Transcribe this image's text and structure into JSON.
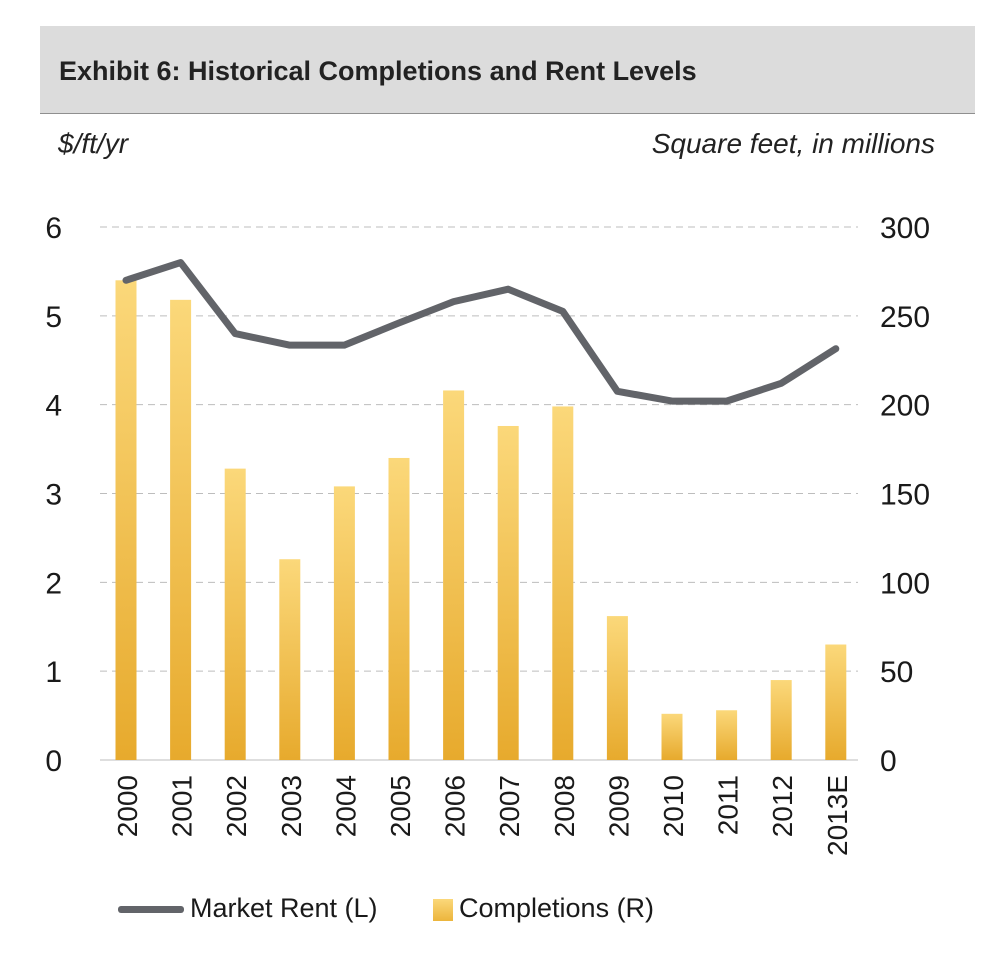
{
  "title": "Exhibit 6: Historical Completions and Rent Levels",
  "left_axis_caption": "$/ft/yr",
  "right_axis_caption": "Square feet, in millions",
  "colors": {
    "line": "#626469",
    "bar_top": "#fbd87a",
    "bar_bottom": "#e7aa2d",
    "grid": "#bdbdbd",
    "title_bg": "#dcdcdc"
  },
  "legend": [
    {
      "label": "Market Rent (L)",
      "icon": "line-swatch"
    },
    {
      "label": "Completions (R)",
      "icon": "bar-swatch"
    }
  ],
  "chart_data": {
    "type": "bar+line",
    "title": "Exhibit 6: Historical Completions and Rent Levels",
    "categories": [
      "2000",
      "2001",
      "2002",
      "2003",
      "2004",
      "2005",
      "2006",
      "2007",
      "2008",
      "2009",
      "2010",
      "2011",
      "2012",
      "2013E"
    ],
    "series": [
      {
        "name": "Completions (R)",
        "type": "bar",
        "axis": "right",
        "values": [
          270,
          259,
          164,
          113,
          154,
          170,
          208,
          188,
          199,
          81,
          26,
          28,
          45,
          65
        ]
      },
      {
        "name": "Market Rent (L)",
        "type": "line",
        "axis": "left",
        "values": [
          5.4,
          5.6,
          4.8,
          4.67,
          4.67,
          4.92,
          5.16,
          5.3,
          5.05,
          4.15,
          4.04,
          4.04,
          4.24,
          4.63
        ]
      }
    ],
    "left_axis": {
      "label": "$/ft/yr",
      "range": [
        0,
        6
      ],
      "ticks": [
        "0",
        "1",
        "2",
        "3",
        "4",
        "5",
        "6"
      ]
    },
    "right_axis": {
      "label": "Square feet, in millions",
      "range": [
        0,
        300
      ],
      "ticks": [
        "0",
        "50",
        "100",
        "150",
        "200",
        "250",
        "300"
      ]
    },
    "grid": "horizontal-dashed",
    "legend_position": "bottom"
  }
}
